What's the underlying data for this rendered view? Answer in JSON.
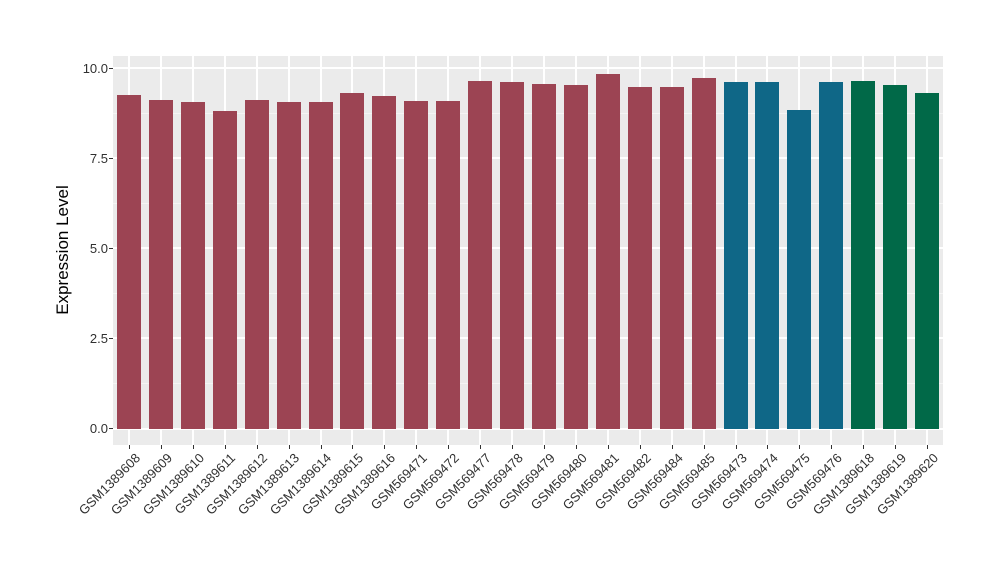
{
  "chart_data": {
    "type": "bar",
    "title": "",
    "xlabel": "",
    "ylabel": "Expression Level",
    "categories": [
      "GSM1389608",
      "GSM1389609",
      "GSM1389610",
      "GSM1389611",
      "GSM1389612",
      "GSM1389613",
      "GSM1389614",
      "GSM1389615",
      "GSM1389616",
      "GSM569471",
      "GSM569472",
      "GSM569477",
      "GSM569478",
      "GSM569479",
      "GSM569480",
      "GSM569481",
      "GSM569482",
      "GSM569484",
      "GSM569485",
      "GSM569473",
      "GSM569474",
      "GSM569475",
      "GSM569476",
      "GSM1389618",
      "GSM1389619",
      "GSM1389620"
    ],
    "values": [
      9.25,
      9.11,
      9.07,
      8.82,
      9.12,
      9.05,
      9.06,
      9.31,
      9.22,
      9.09,
      9.09,
      9.63,
      9.61,
      9.56,
      9.52,
      9.83,
      9.47,
      9.46,
      9.72,
      9.6,
      9.6,
      8.83,
      9.6,
      9.65,
      9.53,
      9.32
    ],
    "groups": [
      "maroon",
      "maroon",
      "maroon",
      "maroon",
      "maroon",
      "maroon",
      "maroon",
      "maroon",
      "maroon",
      "maroon",
      "maroon",
      "maroon",
      "maroon",
      "maroon",
      "maroon",
      "maroon",
      "maroon",
      "maroon",
      "maroon",
      "blue",
      "blue",
      "blue",
      "blue",
      "green",
      "green",
      "green"
    ],
    "palette": {
      "maroon": "#9C4453",
      "blue": "#0F6787",
      "green": "#016948"
    },
    "ylim": [
      0,
      10.33
    ],
    "yticks": [
      {
        "value": 0.0,
        "label": "0.0"
      },
      {
        "value": 2.5,
        "label": "2.5"
      },
      {
        "value": 5.0,
        "label": "5.0"
      },
      {
        "value": 7.5,
        "label": "7.5"
      },
      {
        "value": 10.0,
        "label": "10.0"
      }
    ],
    "yminor": [
      1.25,
      3.75,
      6.25,
      8.75
    ],
    "grid": "major+minor horizontal, major vertical at categories",
    "legend_position": "none",
    "colors": {
      "panel_bg": "#EBEBEB",
      "grid_major": "#FFFFFF",
      "grid_minor": "#F5F5F5",
      "tick_mark": "#333333",
      "tick_text": "#303030",
      "axis_title_text": "#000000"
    }
  }
}
